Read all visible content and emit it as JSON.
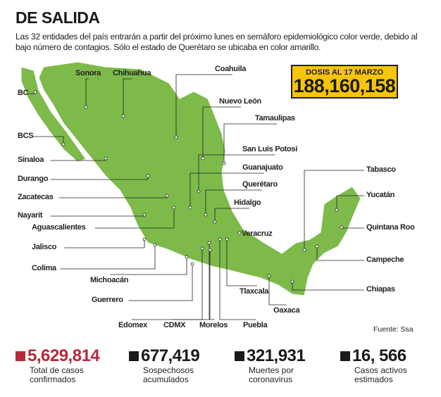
{
  "title": "DE SALIDA",
  "description": "Las 32 entidades del país entrarán a partir del próximo lunes en semáforo epidemiológico color verde, debido al bajo número de contagios. Sólo el estado de Querétaro se ubicaba en color amarillo.",
  "map_color": "#7dba4a",
  "dosis": {
    "label": "DOSIS AL 17 MARZO",
    "value": "188,160,158",
    "color": "#f6c40a"
  },
  "states": [
    "BC",
    "Sonora",
    "Chihuahua",
    "Coahuila",
    "Nuevo León",
    "Tamaulipas",
    "San Luis Potosí",
    "Guanajuato",
    "Querétaro",
    "Hidalgo",
    "Veracruz",
    "BCS",
    "Sinaloa",
    "Durango",
    "Zacatecas",
    "Nayarit",
    "Aguascalientes",
    "Jalisco",
    "Colima",
    "Michoacán",
    "Guerrero",
    "Edomex",
    "CDMX",
    "Morelos",
    "Puebla",
    "Tlaxcala",
    "Oaxaca",
    "Chiapas",
    "Tabasco",
    "Campeche",
    "Yucatán",
    "Quintana Roo"
  ],
  "source": "Fuente: Ssa",
  "stats": [
    {
      "value": "5,629,814",
      "label": "Total de casos confirmados",
      "color": "#b5283c"
    },
    {
      "value": "677,419",
      "label": "Sospechosos acumulados",
      "color": "#1a1a1a"
    },
    {
      "value": "321,931",
      "label": "Muertes por coronavirus",
      "color": "#1a1a1a"
    },
    {
      "value": "16, 566",
      "label": "Casos activos estimados",
      "color": "#1a1a1a"
    }
  ]
}
